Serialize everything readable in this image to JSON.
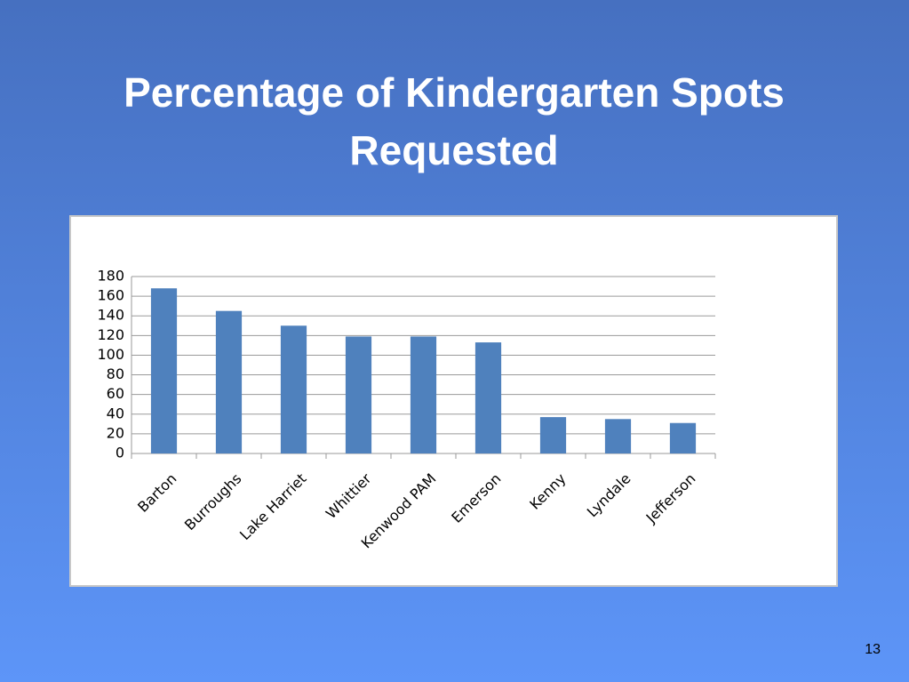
{
  "chart_data": {
    "type": "bar",
    "title": "Percentage of Kindergarten Spots Requested",
    "categories": [
      "Barton",
      "Burroughs",
      "Lake Harriet",
      "Whittier",
      "Kenwood PAM",
      "Emerson",
      "Kenny",
      "Lyndale",
      "Jefferson"
    ],
    "values": [
      168,
      145,
      130,
      119,
      119,
      113,
      37,
      35,
      31
    ],
    "color": "#4f81bd",
    "ylim": [
      0,
      180
    ],
    "yticks": [
      0,
      20,
      40,
      60,
      80,
      100,
      120,
      140,
      160,
      180
    ],
    "grid": true
  },
  "slide_number": "13"
}
